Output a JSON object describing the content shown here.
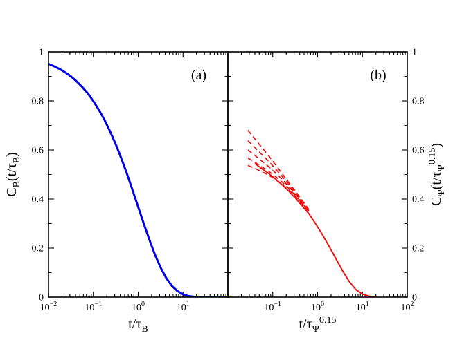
{
  "figure": {
    "background": "#ffffff",
    "frame_color": "#000000"
  },
  "chart_data": [
    {
      "type": "line",
      "title": "",
      "panel_label": "(a)",
      "panel_id": "a",
      "xscale": "log",
      "xlim": [
        0.01,
        100
      ],
      "ylim": [
        0,
        1
      ],
      "grid": false,
      "legend": "none",
      "xlabel": "t/tau_B",
      "ylabel": "C_B(t/tau_B)",
      "xlabel_segments": [
        {
          "t": "t/τ"
        },
        {
          "t": "B",
          "sub": true
        }
      ],
      "ylabel_segments": [
        {
          "t": "C"
        },
        {
          "t": "B",
          "sub": true
        },
        {
          "t": "(t/τ"
        },
        {
          "t": "B",
          "sub": true
        },
        {
          "t": ")"
        }
      ],
      "ylabel_side": "left",
      "xtick_values": [
        0.01,
        0.1,
        1,
        10
      ],
      "xtick_labels": [
        "10^-2",
        "10^-1",
        "10^0",
        "10^1"
      ],
      "ytick_values": [
        0,
        0.2,
        0.4,
        0.6,
        0.8,
        1
      ],
      "ytick_labels": [
        "0",
        "0.2",
        "0.4",
        "0.6",
        "0.8",
        "1"
      ],
      "ytick_minor_step": 0.1,
      "series": [
        {
          "name": "bond-orientation-correlation",
          "color": "#0000e6",
          "style": "solid",
          "width": 3,
          "x": [
            0.01,
            0.0133,
            0.0178,
            0.0237,
            0.0316,
            0.0422,
            0.0562,
            0.075,
            0.1,
            0.133,
            0.178,
            0.237,
            0.316,
            0.422,
            0.562,
            0.75,
            1,
            1.33,
            1.78,
            2.37,
            3.16,
            4.22,
            5.62,
            7.5,
            10,
            13.3,
            17.8,
            23.7,
            31.6,
            42.2,
            56.2,
            75,
            100
          ],
          "y": [
            0.951,
            0.941,
            0.93,
            0.916,
            0.9,
            0.88,
            0.857,
            0.831,
            0.799,
            0.763,
            0.722,
            0.675,
            0.623,
            0.565,
            0.503,
            0.436,
            0.368,
            0.3,
            0.234,
            0.173,
            0.121,
            0.078,
            0.046,
            0.025,
            0.0115,
            0.0046,
            0.0015,
            0.0004,
            0.0001,
            0,
            0,
            0,
            0
          ]
        }
      ]
    },
    {
      "type": "line",
      "title": "",
      "panel_label": "(b)",
      "panel_id": "b",
      "xscale": "log",
      "xlim": [
        0.01,
        100
      ],
      "ylim": [
        0,
        1
      ],
      "grid": false,
      "legend": "none",
      "xlabel": "t/tau_Psi^0.15",
      "ylabel": "C_Psi(t/tau_Psi^0.15)",
      "xlabel_segments": [
        {
          "t": "t/τ"
        },
        {
          "t": "Ψ",
          "sub": true
        },
        {
          "t": "0.15",
          "sup": true
        }
      ],
      "ylabel_segments": [
        {
          "t": "C"
        },
        {
          "t": "Ψ",
          "sub": true
        },
        {
          "t": "(t/τ"
        },
        {
          "t": "Ψ",
          "sub": true
        },
        {
          "t": "0.15",
          "sup": true
        },
        {
          "t": ")"
        }
      ],
      "ylabel_side": "right",
      "xtick_values": [
        0.1,
        1,
        10,
        100
      ],
      "xtick_labels": [
        "10^-1",
        "10^0",
        "10^1",
        "10^2"
      ],
      "ytick_values": [
        0,
        0.2,
        0.4,
        0.6,
        0.8,
        1
      ],
      "ytick_labels": [
        "0",
        "0.2",
        "0.4",
        "0.6",
        "0.8",
        "1"
      ],
      "ytick_minor_step": 0.1,
      "series": [
        {
          "name": "scaled-master-curve",
          "color": "#ee1111",
          "style": "solid",
          "width": 2,
          "x": [
            0.04,
            0.056,
            0.08,
            0.113,
            0.16,
            0.226,
            0.32,
            0.45,
            0.64,
            0.9,
            1.27,
            1.8,
            2.54,
            3.6,
            5.1,
            7.2,
            10.1,
            14.3,
            20
          ],
          "y": [
            0.545,
            0.525,
            0.505,
            0.483,
            0.459,
            0.433,
            0.404,
            0.373,
            0.34,
            0.3,
            0.256,
            0.208,
            0.158,
            0.108,
            0.063,
            0.03,
            0.012,
            0.004,
            0.001
          ]
        },
        {
          "name": "unscaled-curve-1",
          "color": "#ee1111",
          "style": "dashed",
          "width": 1.7,
          "x": [
            0.028,
            0.04,
            0.056,
            0.08,
            0.113,
            0.16,
            0.226,
            0.32,
            0.45,
            0.64
          ],
          "y": [
            0.68,
            0.645,
            0.612,
            0.578,
            0.542,
            0.505,
            0.468,
            0.432,
            0.396,
            0.357
          ]
        },
        {
          "name": "unscaled-curve-2",
          "color": "#ee1111",
          "style": "dashed",
          "width": 1.7,
          "x": [
            0.028,
            0.04,
            0.056,
            0.08,
            0.113,
            0.16,
            0.226,
            0.32,
            0.45,
            0.64
          ],
          "y": [
            0.638,
            0.61,
            0.583,
            0.555,
            0.525,
            0.493,
            0.46,
            0.426,
            0.391,
            0.354
          ]
        },
        {
          "name": "unscaled-curve-3",
          "color": "#ee1111",
          "style": "dashed",
          "width": 1.7,
          "x": [
            0.028,
            0.04,
            0.056,
            0.08,
            0.113,
            0.16,
            0.226,
            0.32,
            0.45,
            0.64
          ],
          "y": [
            0.6,
            0.578,
            0.556,
            0.533,
            0.508,
            0.481,
            0.452,
            0.42,
            0.387,
            0.352
          ]
        },
        {
          "name": "unscaled-curve-4",
          "color": "#ee1111",
          "style": "dashed",
          "width": 1.7,
          "x": [
            0.028,
            0.04,
            0.056,
            0.08,
            0.113,
            0.16,
            0.226,
            0.32,
            0.45,
            0.64
          ],
          "y": [
            0.567,
            0.55,
            0.532,
            0.514,
            0.493,
            0.47,
            0.444,
            0.415,
            0.384,
            0.35
          ]
        },
        {
          "name": "unscaled-curve-5",
          "color": "#ee1111",
          "style": "dashed",
          "width": 1.7,
          "x": [
            0.028,
            0.04,
            0.056,
            0.08,
            0.113,
            0.16,
            0.226,
            0.32,
            0.45,
            0.64
          ],
          "y": [
            0.537,
            0.525,
            0.512,
            0.498,
            0.481,
            0.461,
            0.438,
            0.411,
            0.381,
            0.349
          ]
        }
      ]
    }
  ]
}
